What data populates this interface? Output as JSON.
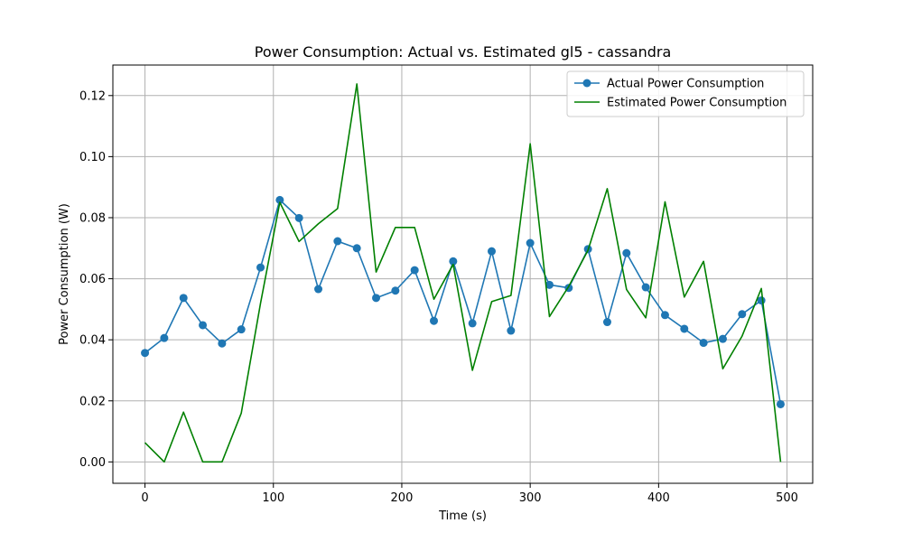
{
  "chart_data": {
    "type": "line",
    "title": "Power Consumption: Actual vs. Estimated gl5 - cassandra",
    "xlabel": "Time (s)",
    "ylabel": "Power Consumption (W)",
    "xlim": [
      -25,
      520
    ],
    "ylim": [
      -0.007,
      0.13
    ],
    "xticks": [
      0,
      100,
      200,
      300,
      400,
      500
    ],
    "xtick_labels": [
      "0",
      "100",
      "200",
      "300",
      "400",
      "500"
    ],
    "yticks": [
      0.0,
      0.02,
      0.04,
      0.06,
      0.08,
      0.1,
      0.12
    ],
    "ytick_labels": [
      "0.00",
      "0.02",
      "0.04",
      "0.06",
      "0.08",
      "0.10",
      "0.12"
    ],
    "grid": true,
    "legend_position": "top-right",
    "x": [
      0,
      15,
      30,
      45,
      60,
      75,
      90,
      105,
      120,
      135,
      150,
      165,
      180,
      195,
      210,
      225,
      240,
      255,
      270,
      285,
      300,
      315,
      330,
      345,
      360,
      375,
      390,
      405,
      420,
      435,
      450,
      465,
      480,
      495
    ],
    "series": [
      {
        "name": "Actual Power Consumption",
        "color": "#1f77b4",
        "marker": "circle",
        "values": [
          0.0357,
          0.0406,
          0.0537,
          0.0448,
          0.0388,
          0.0434,
          0.0637,
          0.0858,
          0.0799,
          0.0566,
          0.0723,
          0.07,
          0.0537,
          0.0561,
          0.0628,
          0.0462,
          0.0657,
          0.0454,
          0.069,
          0.043,
          0.0717,
          0.058,
          0.057,
          0.0697,
          0.0458,
          0.0684,
          0.0572,
          0.0481,
          0.0436,
          0.039,
          0.0403,
          0.0484,
          0.0529,
          0.0189
        ]
      },
      {
        "name": "Estimated Power Consumption",
        "color": "#008000",
        "marker": "none",
        "values": [
          0.0063,
          0.0,
          0.0163,
          0.0,
          0.0,
          0.016,
          0.052,
          0.085,
          0.0722,
          0.078,
          0.083,
          0.1238,
          0.0622,
          0.0768,
          0.0768,
          0.0533,
          0.0647,
          0.03,
          0.0525,
          0.0545,
          0.1042,
          0.0476,
          0.0575,
          0.0693,
          0.0895,
          0.0565,
          0.0472,
          0.0852,
          0.054,
          0.0657,
          0.0305,
          0.0412,
          0.0568,
          0.0
        ]
      }
    ]
  }
}
